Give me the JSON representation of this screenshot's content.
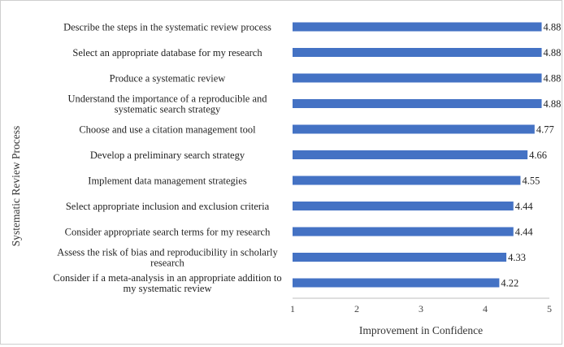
{
  "chart_data": {
    "type": "bar",
    "orientation": "horizontal",
    "categories": [
      "Describe the steps in the systematic review process",
      "Select an appropriate database for my research",
      "Produce a systematic review",
      "Understand the importance of a reproducible and systematic search strategy",
      "Choose and use a citation management tool",
      "Develop a preliminary search strategy",
      "Implement data management strategies",
      "Select appropriate inclusion and exclusion criteria",
      "Consider appropriate search terms for my research",
      "Assess the risk of bias and reproducibility in scholarly research",
      "Consider if a meta-analysis in an appropriate addition to my systematic review"
    ],
    "category_lines": [
      [
        "Describe the steps in the systematic review process"
      ],
      [
        "Select an appropriate database for my research"
      ],
      [
        "Produce a systematic review"
      ],
      [
        "Understand the importance of a reproducible and",
        "systematic search strategy"
      ],
      [
        "Choose and use a citation management tool"
      ],
      [
        "Develop a preliminary search strategy"
      ],
      [
        "Implement data management strategies"
      ],
      [
        "Select appropriate inclusion and exclusion criteria"
      ],
      [
        "Consider appropriate search terms for my research"
      ],
      [
        "Assess the risk of bias and reproducibility in scholarly",
        "research"
      ],
      [
        "Consider if a meta-analysis in an appropriate addition to",
        "my systematic review"
      ]
    ],
    "values": [
      4.88,
      4.88,
      4.88,
      4.88,
      4.77,
      4.66,
      4.55,
      4.44,
      4.44,
      4.33,
      4.22
    ],
    "value_labels": [
      "4.88",
      "4.88",
      "4.88",
      "4.88",
      "4.77",
      "4.66",
      "4.55",
      "4.44",
      "4.44",
      "4.33",
      "4.22"
    ],
    "xlabel": "Improvement in Confidence",
    "ylabel": "Systematic Review Process",
    "xlim": [
      1,
      5
    ],
    "xticks": [
      "1",
      "2",
      "3",
      "4",
      "5"
    ],
    "grid": false,
    "bar_color": "#4472c4"
  }
}
